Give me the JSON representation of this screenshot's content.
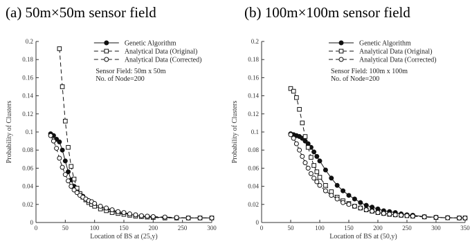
{
  "panel_titles": {
    "a": "(a) 50m×50m sensor field",
    "b": "(b) 100m×100m sensor field"
  },
  "colors": {
    "axis": "#333333",
    "series": "#111111"
  },
  "chart_data": [
    {
      "type": "line",
      "xlabel": "Location of BS at (25,y)",
      "ylabel": "Probability of Clusters",
      "xlim": [
        0,
        300
      ],
      "ylim": [
        0,
        0.2
      ],
      "xticks": [
        "0",
        "50",
        "100",
        "150",
        "200",
        "250",
        "300"
      ],
      "yticks": [
        "0",
        "0.02",
        "0.04",
        "0.06",
        "0.08",
        "0.1",
        "0.12",
        "0.14",
        "0.16",
        "0.18",
        "0.2"
      ],
      "legend_position": "top-right",
      "annotations": [
        "Sensor Field: 50m x 50m",
        "No. of Node=200"
      ],
      "series": [
        {
          "name": "Genetic Algorithm",
          "marker": "filled-circle",
          "dash": "solid",
          "x": [
            25,
            30,
            35,
            40,
            45,
            50,
            55,
            60,
            65,
            70,
            75,
            80,
            85,
            90,
            95,
            100,
            110,
            120,
            130,
            140,
            150,
            160,
            170,
            180,
            190,
            200,
            220,
            240,
            260,
            280,
            300
          ],
          "y": [
            0.098,
            0.096,
            0.092,
            0.089,
            0.08,
            0.068,
            0.056,
            0.047,
            0.04,
            0.036,
            0.032,
            0.029,
            0.026,
            0.024,
            0.022,
            0.02,
            0.017,
            0.015,
            0.013,
            0.011,
            0.01,
            0.009,
            0.008,
            0.007,
            0.0065,
            0.006,
            0.0055,
            0.005,
            0.005,
            0.005,
            0.005
          ]
        },
        {
          "name": "Analytical Data (Original)",
          "marker": "open-square",
          "dash": "dashed",
          "x": [
            40,
            45,
            50,
            55,
            60,
            65,
            70,
            75,
            80,
            85,
            90,
            95,
            100,
            110,
            120,
            130,
            140,
            150,
            160,
            170,
            180,
            190,
            200,
            220,
            240,
            260,
            280,
            300
          ],
          "y": [
            0.192,
            0.15,
            0.112,
            0.083,
            0.062,
            0.048,
            0.038,
            0.032,
            0.028,
            0.025,
            0.022,
            0.02,
            0.018,
            0.015,
            0.013,
            0.011,
            0.01,
            0.009,
            0.008,
            0.007,
            0.0065,
            0.006,
            0.0055,
            0.005,
            0.005,
            0.005,
            0.005,
            0.005
          ]
        },
        {
          "name": "Analytical Data (Corrected)",
          "marker": "open-circle",
          "dash": "dashed",
          "x": [
            25,
            30,
            35,
            40,
            45,
            50,
            55,
            60,
            65,
            70,
            75,
            80,
            85,
            90,
            95,
            100,
            110,
            120,
            130,
            140,
            150,
            160,
            170,
            180,
            190,
            200,
            220,
            240,
            260,
            280,
            300
          ],
          "y": [
            0.096,
            0.09,
            0.082,
            0.071,
            0.061,
            0.053,
            0.046,
            0.04,
            0.036,
            0.033,
            0.03,
            0.028,
            0.026,
            0.024,
            0.023,
            0.021,
            0.018,
            0.016,
            0.014,
            0.012,
            0.011,
            0.0095,
            0.0085,
            0.0075,
            0.007,
            0.0065,
            0.006,
            0.0055,
            0.005,
            0.005,
            0.005
          ]
        }
      ]
    },
    {
      "type": "line",
      "xlabel": "Location of BS at (50,y)",
      "ylabel": "Probability of Clusters",
      "xlim": [
        0,
        350
      ],
      "ylim": [
        0,
        0.2
      ],
      "xticks": [
        "0",
        "50",
        "100",
        "150",
        "200",
        "250",
        "300",
        "350"
      ],
      "yticks": [
        "0",
        "0.02",
        "0.04",
        "0.06",
        "0.08",
        "0.1",
        "0.12",
        "0.14",
        "0.16",
        "0.18",
        "0.2"
      ],
      "legend_position": "top-right",
      "annotations": [
        "Sensor Field: 100m x 100m",
        "No. of Node=200"
      ],
      "series": [
        {
          "name": "Genetic Algorithm",
          "marker": "filled-circle",
          "dash": "solid",
          "x": [
            50,
            55,
            60,
            65,
            70,
            75,
            80,
            85,
            90,
            95,
            100,
            110,
            120,
            130,
            140,
            150,
            160,
            170,
            180,
            190,
            200,
            210,
            220,
            230,
            240,
            250,
            260,
            280,
            300,
            320,
            340,
            350
          ],
          "y": [
            0.098,
            0.097,
            0.096,
            0.095,
            0.093,
            0.09,
            0.087,
            0.083,
            0.078,
            0.073,
            0.068,
            0.058,
            0.049,
            0.041,
            0.035,
            0.03,
            0.026,
            0.022,
            0.019,
            0.017,
            0.015,
            0.013,
            0.012,
            0.011,
            0.0095,
            0.0085,
            0.008,
            0.0065,
            0.0058,
            0.0053,
            0.005,
            0.005
          ]
        },
        {
          "name": "Analytical Data (Original)",
          "marker": "open-square",
          "dash": "dashed",
          "x": [
            50,
            55,
            60,
            65,
            70,
            75,
            80,
            85,
            90,
            95,
            100,
            110,
            120,
            130,
            140,
            150,
            160,
            170,
            180,
            190,
            200,
            210,
            220,
            230,
            240,
            250,
            260,
            280,
            300,
            320,
            340,
            350
          ],
          "y": [
            0.148,
            0.145,
            0.138,
            0.125,
            0.11,
            0.095,
            0.083,
            0.072,
            0.063,
            0.056,
            0.05,
            0.041,
            0.034,
            0.028,
            0.024,
            0.021,
            0.018,
            0.016,
            0.014,
            0.0125,
            0.011,
            0.01,
            0.009,
            0.0085,
            0.008,
            0.0075,
            0.007,
            0.0062,
            0.0056,
            0.0052,
            0.005,
            0.005
          ]
        },
        {
          "name": "Analytical Data (Corrected)",
          "marker": "open-circle",
          "dash": "dashed",
          "x": [
            50,
            55,
            60,
            65,
            70,
            75,
            80,
            85,
            90,
            95,
            100,
            110,
            120,
            130,
            140,
            150,
            160,
            170,
            180,
            190,
            200,
            210,
            220,
            230,
            240,
            250,
            260,
            280,
            300,
            320,
            340,
            350
          ],
          "y": [
            0.097,
            0.093,
            0.087,
            0.08,
            0.073,
            0.066,
            0.06,
            0.054,
            0.049,
            0.045,
            0.041,
            0.035,
            0.03,
            0.026,
            0.022,
            0.02,
            0.018,
            0.016,
            0.014,
            0.0125,
            0.011,
            0.01,
            0.0092,
            0.0085,
            0.008,
            0.0075,
            0.007,
            0.0062,
            0.0056,
            0.0052,
            0.005,
            0.005
          ]
        }
      ]
    }
  ]
}
